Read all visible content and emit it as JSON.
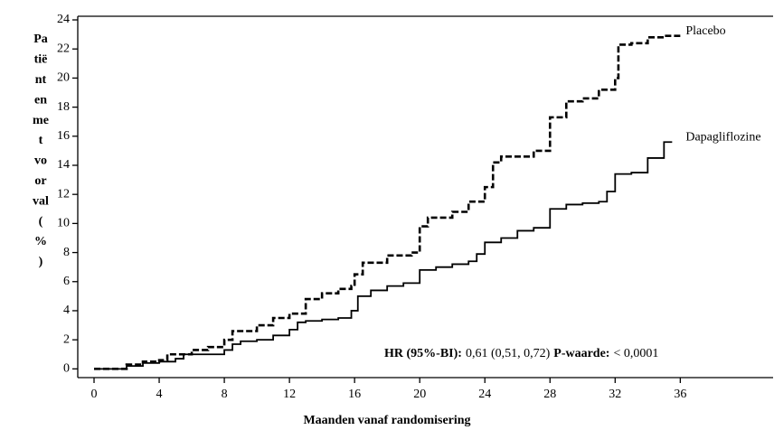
{
  "chart_data": {
    "type": "step",
    "y_label_lines": [
      "Pa",
      "tië",
      "nt",
      "en",
      "me",
      "t",
      "vo",
      "or",
      "val",
      "(",
      "%",
      ")"
    ],
    "x_label": "Maanden vanaf randomisering",
    "annotation": [
      "HR (95%-BI):",
      "0,61 (0,51, 0,72)",
      "P-waarde:",
      "< 0,0001"
    ],
    "xlim": [
      -1,
      41.7
    ],
    "ylim": [
      -0.6,
      24.25
    ],
    "xticks": [
      0,
      4,
      8,
      12,
      16,
      20,
      24,
      28,
      32,
      36
    ],
    "yticks": [
      0,
      2,
      4,
      6,
      8,
      10,
      12,
      14,
      16,
      18,
      20,
      22,
      24
    ],
    "series": [
      {
        "name": "Placebo",
        "color": "#000000",
        "dash": true,
        "x": [
          0,
          2,
          3,
          4,
          4.5,
          6,
          7,
          8,
          8.5,
          10,
          11,
          12,
          13,
          14,
          15,
          15.8,
          16,
          16.5,
          18,
          19.5,
          20,
          20.5,
          22,
          23,
          24,
          24.5,
          25,
          27,
          28,
          29,
          30,
          31,
          32,
          32.2,
          33,
          34,
          35,
          36
        ],
        "values": [
          0,
          0.3,
          0.5,
          0.6,
          1.0,
          1.3,
          1.5,
          2.0,
          2.6,
          3.0,
          3.5,
          3.8,
          4.8,
          5.2,
          5.5,
          5.7,
          6.5,
          7.3,
          7.8,
          8.0,
          9.8,
          10.4,
          10.8,
          11.5,
          12.5,
          14.2,
          14.6,
          15.0,
          17.3,
          18.4,
          18.6,
          19.2,
          20.0,
          22.3,
          22.4,
          22.8,
          22.9,
          22.9
        ]
      },
      {
        "name": "Dapagliflozine",
        "color": "#000000",
        "dash": false,
        "x": [
          0,
          2,
          3,
          4,
          5,
          5.5,
          7,
          8,
          8.5,
          9,
          10,
          11,
          12,
          12.5,
          13,
          14,
          15,
          15.8,
          16.2,
          17,
          18,
          19,
          20,
          21,
          22,
          23,
          23.5,
          24,
          25,
          26,
          27,
          28,
          29,
          30,
          31,
          31.5,
          32,
          33,
          34,
          35,
          35.5
        ],
        "values": [
          0,
          0.2,
          0.4,
          0.5,
          0.7,
          1.0,
          1.0,
          1.3,
          1.7,
          1.9,
          2.0,
          2.3,
          2.7,
          3.2,
          3.3,
          3.4,
          3.5,
          4.0,
          5.0,
          5.4,
          5.7,
          5.9,
          6.8,
          7.0,
          7.2,
          7.4,
          7.9,
          8.7,
          9.0,
          9.5,
          9.7,
          11.0,
          11.3,
          11.4,
          11.5,
          12.2,
          13.4,
          13.5,
          14.5,
          15.6,
          15.6
        ]
      }
    ]
  }
}
